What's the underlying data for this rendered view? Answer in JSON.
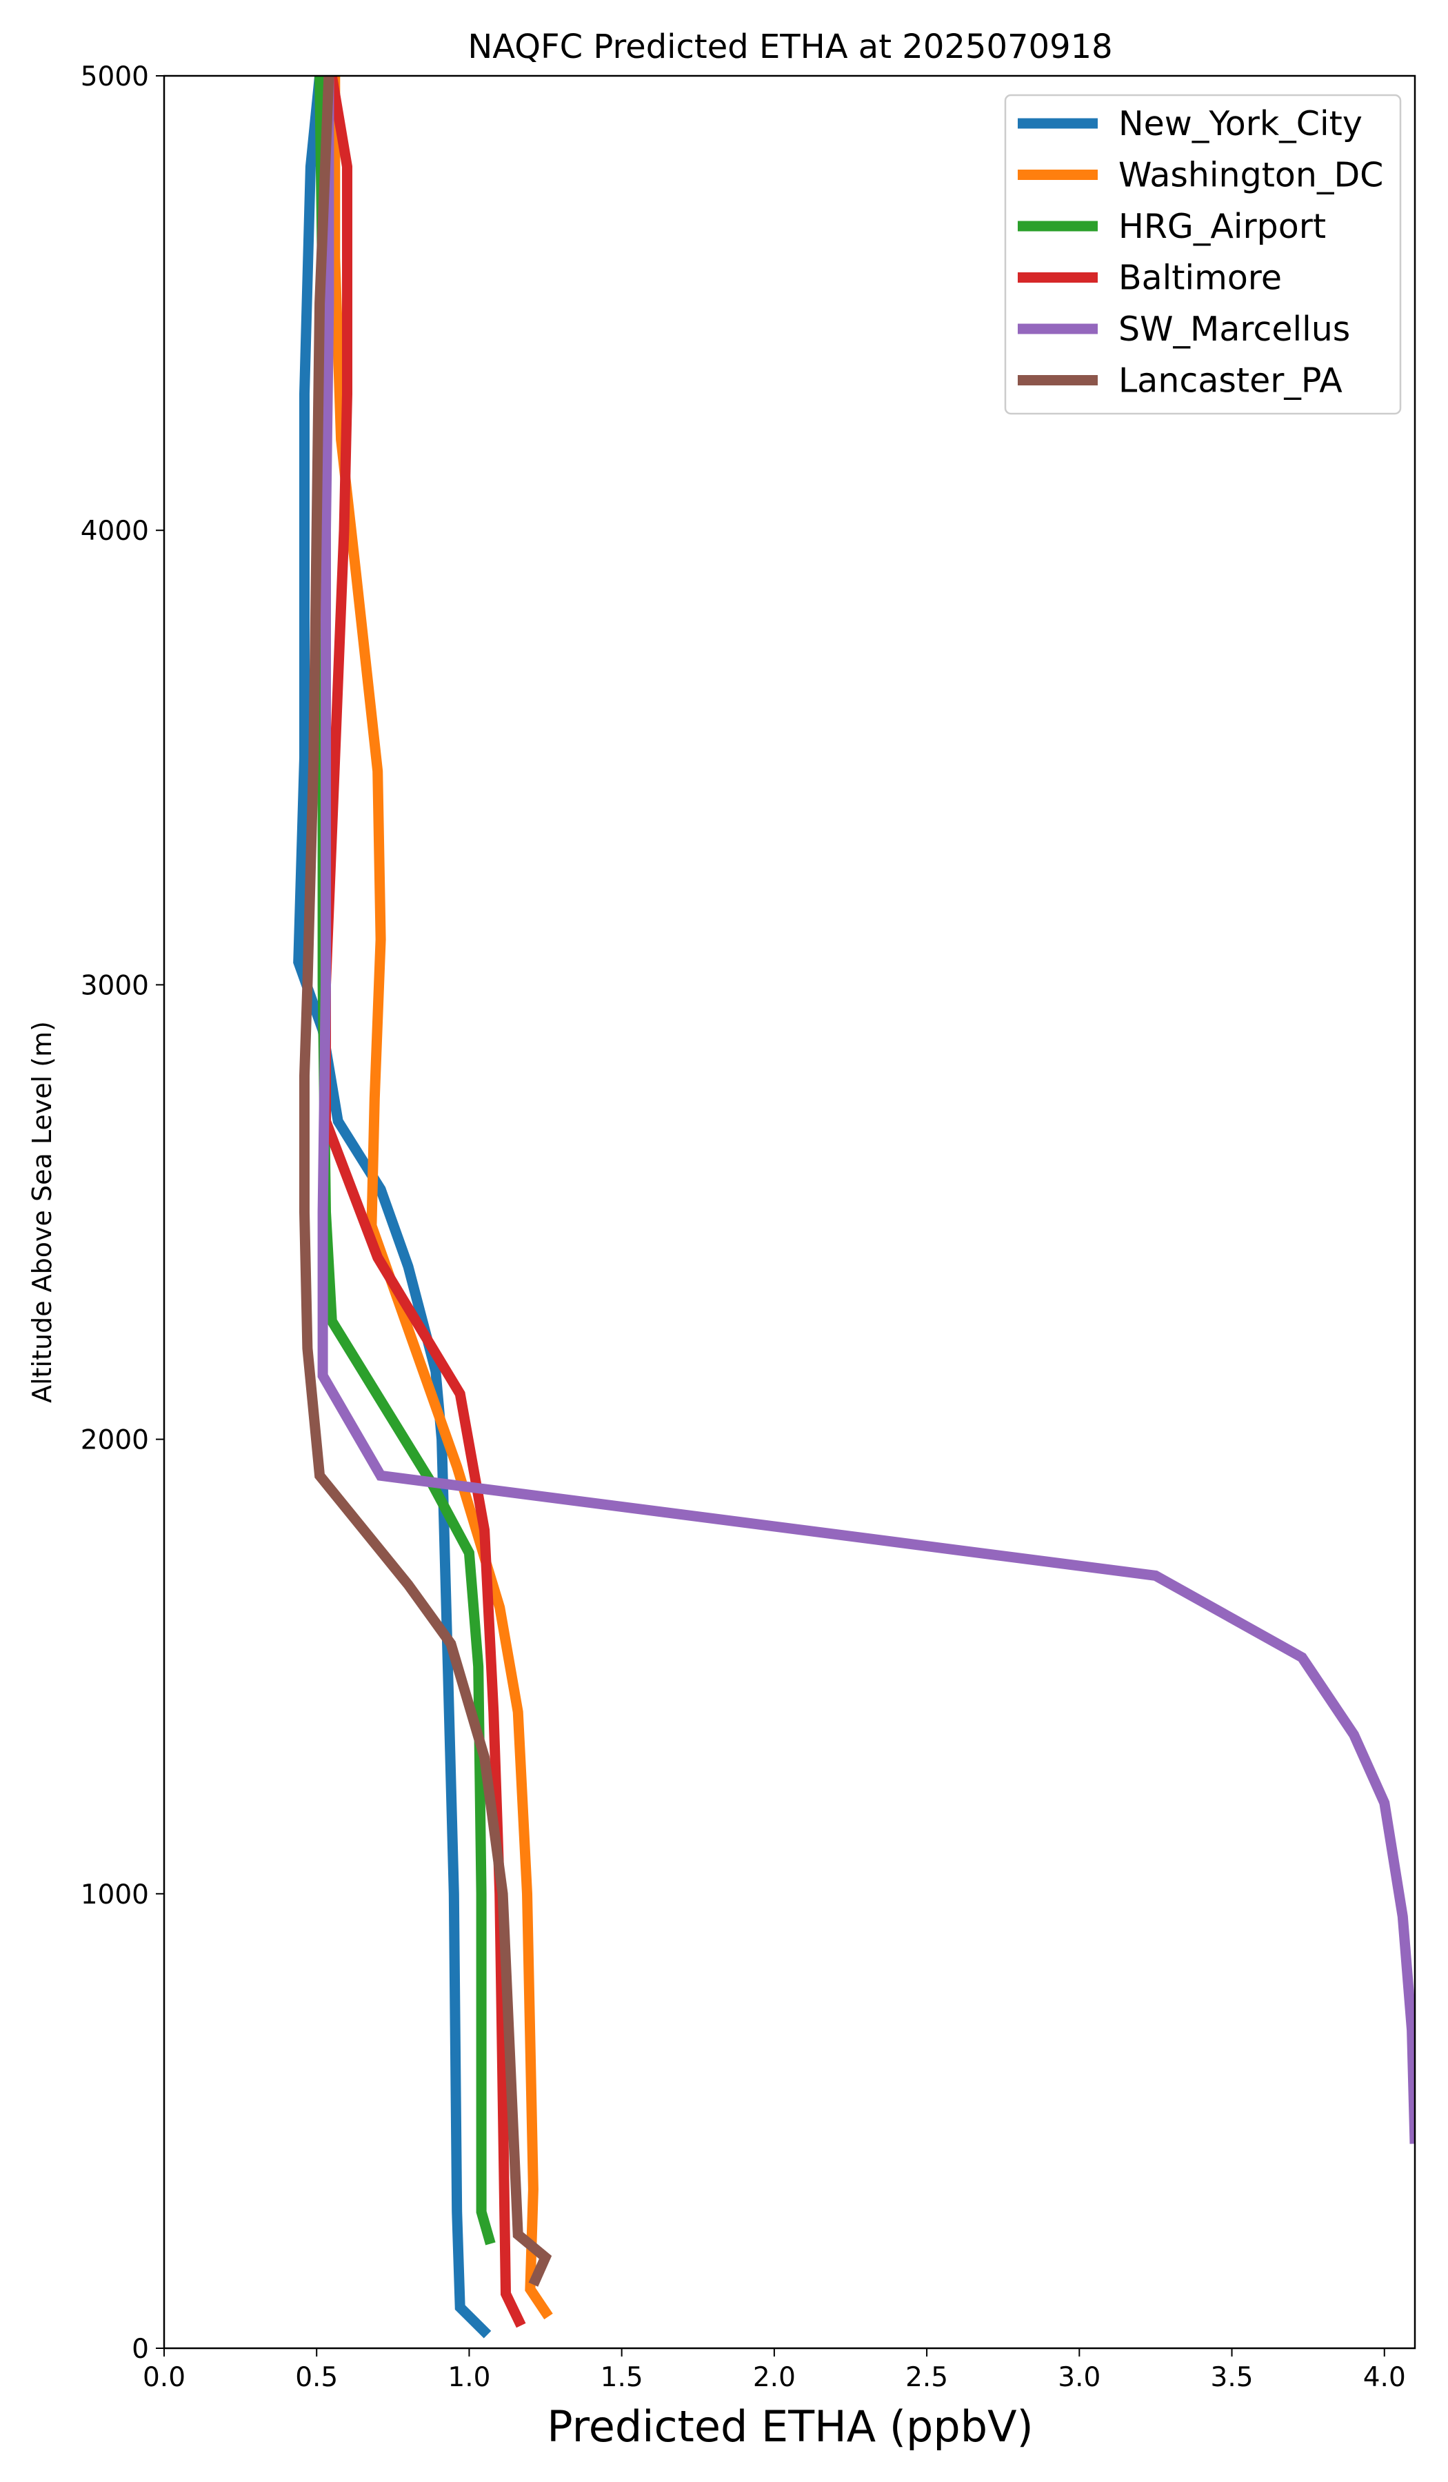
{
  "chart_data": {
    "type": "line",
    "title": "NAQFC Predicted ETHA at 2025070918",
    "xlabel": "Predicted ETHA (ppbV)",
    "ylabel": "Altitude Above Sea Level (m)",
    "xlim": [
      0,
      4.1
    ],
    "ylim": [
      0,
      5000
    ],
    "grid": false,
    "legend_position": "top-right",
    "x_ticks": [
      "0.0",
      "0.5",
      "1.0",
      "1.5",
      "2.0",
      "2.5",
      "3.0",
      "3.5",
      "4.0"
    ],
    "y_ticks": [
      "0",
      "1000",
      "2000",
      "3000",
      "4000",
      "5000"
    ],
    "series": [
      {
        "name": "New_York_City",
        "color": "#1f77b4",
        "points": [
          [
            1.06,
            30
          ],
          [
            0.97,
            90
          ],
          [
            0.96,
            300
          ],
          [
            0.95,
            1000
          ],
          [
            0.93,
            1500
          ],
          [
            0.91,
            2000
          ],
          [
            0.89,
            2150
          ],
          [
            0.8,
            2380
          ],
          [
            0.71,
            2550
          ],
          [
            0.57,
            2700
          ],
          [
            0.52,
            2900
          ],
          [
            0.44,
            3050
          ],
          [
            0.46,
            3500
          ],
          [
            0.46,
            4000
          ],
          [
            0.46,
            4300
          ],
          [
            0.48,
            4800
          ],
          [
            0.51,
            5000
          ]
        ]
      },
      {
        "name": "Washington_DC",
        "color": "#ff7f0e",
        "points": [
          [
            1.26,
            70
          ],
          [
            1.2,
            130
          ],
          [
            1.21,
            350
          ],
          [
            1.19,
            1000
          ],
          [
            1.16,
            1400
          ],
          [
            1.1,
            1630
          ],
          [
            0.96,
            1940
          ],
          [
            0.68,
            2470
          ],
          [
            0.69,
            2750
          ],
          [
            0.71,
            3100
          ],
          [
            0.7,
            3470
          ],
          [
            0.63,
            3900
          ],
          [
            0.58,
            4200
          ],
          [
            0.56,
            4600
          ],
          [
            0.56,
            5000
          ]
        ]
      },
      {
        "name": "HRG_Airport",
        "color": "#2ca02c",
        "points": [
          [
            1.07,
            230
          ],
          [
            1.04,
            300
          ],
          [
            1.04,
            1000
          ],
          [
            1.03,
            1500
          ],
          [
            1.0,
            1750
          ],
          [
            0.88,
            1900
          ],
          [
            0.55,
            2260
          ],
          [
            0.53,
            2500
          ],
          [
            0.52,
            3000
          ],
          [
            0.52,
            4000
          ],
          [
            0.52,
            4500
          ],
          [
            0.51,
            5000
          ]
        ]
      },
      {
        "name": "Baltimore",
        "color": "#d62728",
        "points": [
          [
            1.17,
            50
          ],
          [
            1.12,
            120
          ],
          [
            1.1,
            1000
          ],
          [
            1.08,
            1400
          ],
          [
            1.05,
            1800
          ],
          [
            0.97,
            2100
          ],
          [
            0.7,
            2400
          ],
          [
            0.53,
            2700
          ],
          [
            0.53,
            3000
          ],
          [
            0.56,
            3500
          ],
          [
            0.59,
            4000
          ],
          [
            0.6,
            4300
          ],
          [
            0.6,
            4800
          ],
          [
            0.55,
            5000
          ]
        ]
      },
      {
        "name": "SW_Marcellus",
        "color": "#9467bd",
        "points": [
          [
            4.1,
            450
          ],
          [
            4.09,
            700
          ],
          [
            4.06,
            950
          ],
          [
            4.0,
            1200
          ],
          [
            3.9,
            1350
          ],
          [
            3.73,
            1520
          ],
          [
            3.25,
            1700
          ],
          [
            0.71,
            1920
          ],
          [
            0.52,
            2140
          ],
          [
            0.52,
            2500
          ],
          [
            0.53,
            3000
          ],
          [
            0.53,
            3500
          ],
          [
            0.53,
            4000
          ],
          [
            0.54,
            4500
          ],
          [
            0.54,
            5000
          ]
        ]
      },
      {
        "name": "Lancaster_PA",
        "color": "#8c564b",
        "points": [
          [
            1.21,
            140
          ],
          [
            1.25,
            200
          ],
          [
            1.16,
            250
          ],
          [
            1.11,
            1000
          ],
          [
            1.05,
            1300
          ],
          [
            0.94,
            1550
          ],
          [
            0.8,
            1680
          ],
          [
            0.51,
            1920
          ],
          [
            0.47,
            2200
          ],
          [
            0.46,
            2500
          ],
          [
            0.46,
            2800
          ],
          [
            0.47,
            3000
          ],
          [
            0.49,
            3500
          ],
          [
            0.5,
            4000
          ],
          [
            0.51,
            4500
          ],
          [
            0.54,
            5000
          ]
        ]
      }
    ]
  }
}
